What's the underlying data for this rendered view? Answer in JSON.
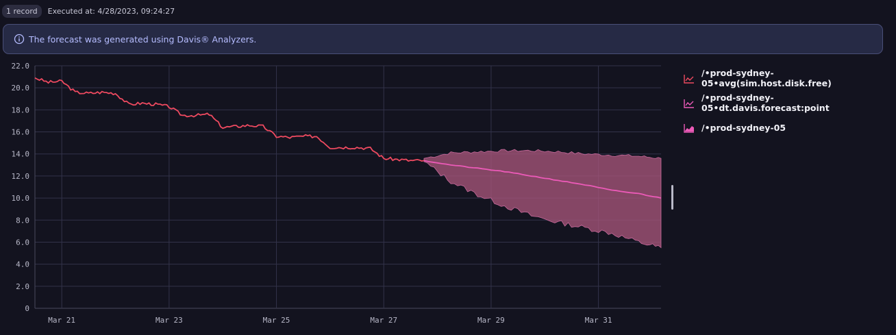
{
  "header": {
    "record_count": "1 record",
    "executed": "Executed at: 4/28/2023, 09:24:27"
  },
  "info_banner": {
    "text": "The forecast was generated using Davis® Analyzers."
  },
  "colors": {
    "actual": "#ef4a60",
    "forecast": "#ec5ab8",
    "band": "#a5557a"
  },
  "legend": [
    {
      "label": "/•prod-sydney-05•avg(sim.host.disk.free)",
      "icon": "line-chart-icon",
      "color": "#ef4a60"
    },
    {
      "label": "/•prod-sydney-05•dt.davis.forecast:point",
      "icon": "line-chart-icon",
      "color": "#ec5ab8"
    },
    {
      "label": "/•prod-sydney-05",
      "icon": "area-chart-icon",
      "color": "#ec5ab8"
    }
  ],
  "chart_data": {
    "type": "line",
    "x_domain": [
      "2023-03-20 12:00",
      "2023-04-01 04:00"
    ],
    "ylim": [
      0,
      22
    ],
    "y_ticks": [
      0,
      2.0,
      4.0,
      6.0,
      8.0,
      10.0,
      12.0,
      14.0,
      16.0,
      18.0,
      20.0,
      22.0
    ],
    "y_tick_labels": [
      "0",
      "2.0",
      "4.0",
      "6.0",
      "8.0",
      "10.0",
      "12.0",
      "14.0",
      "16.0",
      "18.0",
      "20.0",
      "22.0"
    ],
    "x_ticks": [
      "2023-03-21",
      "2023-03-23",
      "2023-03-25",
      "2023-03-27",
      "2023-03-29",
      "2023-03-31"
    ],
    "x_tick_labels": [
      "Mar 21",
      "Mar 23",
      "Mar 25",
      "Mar 27",
      "Mar 29",
      "Mar 31"
    ],
    "grid": true,
    "legend_position": "right",
    "series": [
      {
        "name": "/•prod-sydney-05•avg(sim.host.disk.free)",
        "x": [
          "2023-03-20 12:00",
          "2023-03-20 18:00",
          "2023-03-21 00:00",
          "2023-03-21 06:00",
          "2023-03-21 12:00",
          "2023-03-21 18:00",
          "2023-03-22 00:00",
          "2023-03-22 06:00",
          "2023-03-22 12:00",
          "2023-03-22 18:00",
          "2023-03-23 00:00",
          "2023-03-23 06:00",
          "2023-03-23 12:00",
          "2023-03-23 18:00",
          "2023-03-24 00:00",
          "2023-03-24 06:00",
          "2023-03-24 12:00",
          "2023-03-24 18:00",
          "2023-03-25 00:00",
          "2023-03-25 06:00",
          "2023-03-25 12:00",
          "2023-03-25 18:00",
          "2023-03-26 00:00",
          "2023-03-26 06:00",
          "2023-03-26 12:00",
          "2023-03-26 18:00",
          "2023-03-27 00:00",
          "2023-03-27 06:00",
          "2023-03-27 12:00",
          "2023-03-27 18:00"
        ],
        "values": [
          20.9,
          20.5,
          20.6,
          19.6,
          19.5,
          19.6,
          19.5,
          18.5,
          18.6,
          18.5,
          18.3,
          17.5,
          17.5,
          17.6,
          16.4,
          16.5,
          16.6,
          16.5,
          15.6,
          15.5,
          15.6,
          15.6,
          14.6,
          14.6,
          14.6,
          14.5,
          13.6,
          13.5,
          13.4,
          13.4
        ]
      },
      {
        "name": "/•prod-sydney-05•dt.davis.forecast:point",
        "x": [
          "2023-03-27 18:00",
          "2023-03-28 06:00",
          "2023-03-28 18:00",
          "2023-03-29 06:00",
          "2023-03-29 18:00",
          "2023-03-30 06:00",
          "2023-03-30 18:00",
          "2023-03-31 06:00",
          "2023-03-31 18:00",
          "2023-04-01 04:00"
        ],
        "values": [
          13.4,
          13.0,
          12.7,
          12.4,
          12.0,
          11.6,
          11.2,
          10.7,
          10.4,
          10.0
        ]
      },
      {
        "name": "/•prod-sydney-05",
        "type": "area",
        "x": [
          "2023-03-27 18:00",
          "2023-03-28 06:00",
          "2023-03-28 18:00",
          "2023-03-29 06:00",
          "2023-03-29 18:00",
          "2023-03-30 06:00",
          "2023-03-30 18:00",
          "2023-03-31 06:00",
          "2023-03-31 18:00",
          "2023-04-01 04:00"
        ],
        "upper": [
          13.6,
          14.1,
          14.2,
          14.3,
          14.3,
          14.2,
          14.0,
          13.9,
          13.8,
          13.6
        ],
        "lower": [
          13.3,
          11.5,
          10.3,
          9.3,
          8.4,
          7.8,
          7.3,
          6.8,
          6.0,
          5.5
        ]
      }
    ]
  }
}
